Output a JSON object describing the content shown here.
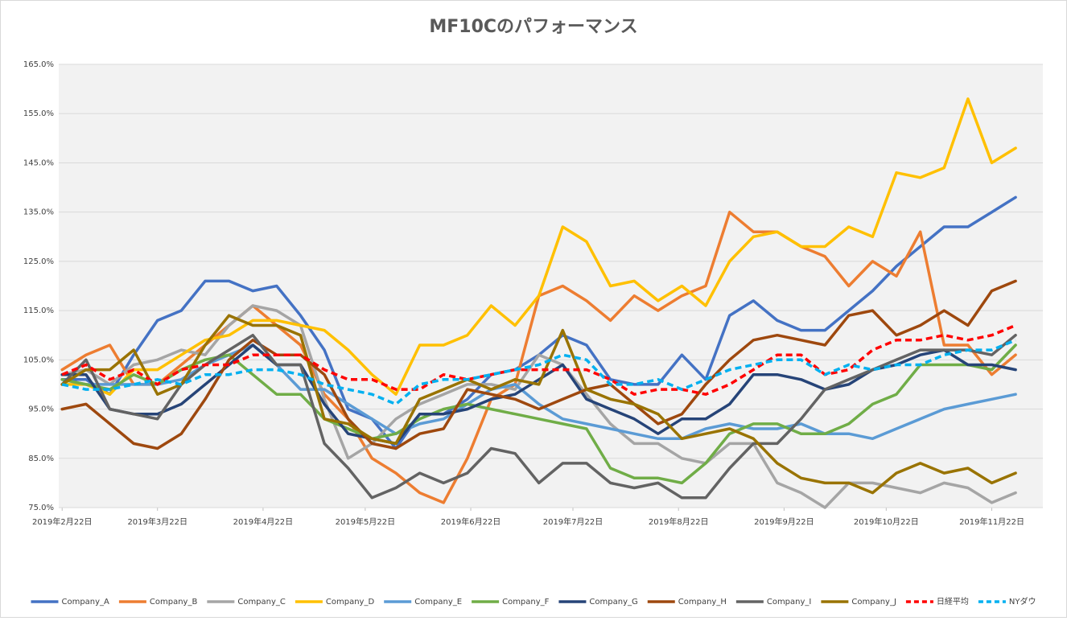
{
  "chart_data": {
    "type": "line",
    "title": "MF10Cのパフォーマンス",
    "x": [
      "2019-02-22",
      "2019-03-01",
      "2019-03-08",
      "2019-03-15",
      "2019-03-22",
      "2019-03-29",
      "2019-04-05",
      "2019-04-12",
      "2019-04-19",
      "2019-04-26",
      "2019-05-03",
      "2019-05-10",
      "2019-05-17",
      "2019-05-24",
      "2019-05-31",
      "2019-06-07",
      "2019-06-14",
      "2019-06-21",
      "2019-06-28",
      "2019-07-05",
      "2019-07-12",
      "2019-07-19",
      "2019-07-26",
      "2019-08-02",
      "2019-08-09",
      "2019-08-16",
      "2019-08-23",
      "2019-08-30",
      "2019-09-06",
      "2019-09-13",
      "2019-09-20",
      "2019-09-27",
      "2019-10-04",
      "2019-10-11",
      "2019-10-18",
      "2019-10-25",
      "2019-11-01",
      "2019-11-08",
      "2019-11-15",
      "2019-11-22",
      "2019-11-29"
    ],
    "xlim": [
      "2019-02-21",
      "2019-12-07"
    ],
    "xticks": [
      {
        "value": "2019-02-22",
        "label": "2019年2月22日"
      },
      {
        "value": "2019-03-22",
        "label": "2019年3月22日"
      },
      {
        "value": "2019-04-22",
        "label": "2019年4月22日"
      },
      {
        "value": "2019-05-22",
        "label": "2019年5月22日"
      },
      {
        "value": "2019-06-22",
        "label": "2019年6月22日"
      },
      {
        "value": "2019-07-22",
        "label": "2019年7月22日"
      },
      {
        "value": "2019-08-22",
        "label": "2019年8月22日"
      },
      {
        "value": "2019-09-22",
        "label": "2019年9月22日"
      },
      {
        "value": "2019-10-22",
        "label": "2019年10月22日"
      },
      {
        "value": "2019-11-22",
        "label": "2019年11月22日"
      }
    ],
    "ylim": [
      75,
      165
    ],
    "yticks": [
      {
        "value": 75,
        "label": "75.0%"
      },
      {
        "value": 85,
        "label": "85.0%"
      },
      {
        "value": 95,
        "label": "95.0%"
      },
      {
        "value": 105,
        "label": "105.0%"
      },
      {
        "value": 115,
        "label": "115.0%"
      },
      {
        "value": 125,
        "label": "125.0%"
      },
      {
        "value": 135,
        "label": "135.0%"
      },
      {
        "value": 145,
        "label": "145.0%"
      },
      {
        "value": 155,
        "label": "155.0%"
      },
      {
        "value": 165,
        "label": "165.0%"
      }
    ],
    "grid": true,
    "legend": "bottom",
    "series": [
      {
        "name": "Company_A",
        "color": "#4472c4",
        "values": [
          101,
          101,
          98,
          106,
          113,
          115,
          121,
          121,
          119,
          120,
          114,
          107,
          95,
          93,
          87,
          94,
          94,
          97,
          102,
          103,
          106,
          110,
          108,
          101,
          100,
          100,
          106,
          101,
          114,
          117,
          113,
          111,
          111,
          115,
          119,
          124,
          128,
          132,
          132,
          135,
          138
        ]
      },
      {
        "name": "Company_B",
        "color": "#ed7d31",
        "values": [
          103,
          106,
          108,
          100,
          100,
          104,
          108,
          112,
          116,
          112,
          108,
          98,
          93,
          85,
          82,
          78,
          76,
          85,
          97,
          100,
          118,
          120,
          117,
          113,
          118,
          115,
          118,
          120,
          135,
          131,
          131,
          128,
          126,
          120,
          125,
          122,
          131,
          108,
          108,
          102,
          106
        ]
      },
      {
        "name": "Company_C",
        "color": "#a5a5a5",
        "values": [
          102,
          103,
          100,
          104,
          105,
          107,
          106,
          112,
          116,
          115,
          112,
          97,
          85,
          88,
          93,
          96,
          98,
          100,
          100,
          99,
          106,
          104,
          98,
          92,
          88,
          88,
          85,
          84,
          88,
          88,
          80,
          78,
          75,
          80,
          80,
          79,
          78,
          80,
          79,
          76,
          78
        ]
      },
      {
        "name": "Company_D",
        "color": "#ffc000",
        "values": [
          100,
          100,
          98,
          103,
          103,
          106,
          109,
          110,
          113,
          113,
          112,
          111,
          107,
          102,
          98,
          108,
          108,
          110,
          116,
          112,
          118,
          132,
          129,
          120,
          121,
          117,
          120,
          116,
          125,
          130,
          131,
          128,
          128,
          132,
          130,
          143,
          142,
          144,
          158,
          145,
          148
        ]
      },
      {
        "name": "Company_E",
        "color": "#5b9bd5",
        "values": [
          101,
          100,
          100,
          100,
          100,
          101,
          104,
          106,
          108,
          104,
          99,
          99,
          96,
          93,
          90,
          92,
          93,
          96,
          99,
          100,
          96,
          93,
          92,
          91,
          90,
          89,
          89,
          91,
          92,
          91,
          91,
          92,
          90,
          90,
          89,
          91,
          93,
          95,
          96,
          97,
          98
        ]
      },
      {
        "name": "Company_F",
        "color": "#70ad47",
        "values": [
          101,
          100,
          99,
          102,
          100,
          103,
          105,
          106,
          102,
          98,
          98,
          93,
          91,
          89,
          90,
          93,
          95,
          96,
          95,
          94,
          93,
          92,
          91,
          83,
          81,
          81,
          80,
          84,
          90,
          92,
          92,
          90,
          90,
          92,
          96,
          98,
          104,
          104,
          104,
          103,
          108
        ]
      },
      {
        "name": "Company_G",
        "color": "#264478",
        "values": [
          102,
          102,
          95,
          94,
          94,
          96,
          100,
          104,
          108,
          104,
          104,
          96,
          90,
          89,
          88,
          94,
          94,
          95,
          97,
          98,
          101,
          104,
          97,
          95,
          93,
          90,
          93,
          93,
          96,
          102,
          102,
          101,
          99,
          100,
          103,
          104,
          106,
          107,
          104,
          104,
          103
        ]
      },
      {
        "name": "Company_H",
        "color": "#9e480e",
        "values": [
          95,
          96,
          92,
          88,
          87,
          90,
          97,
          105,
          109,
          106,
          106,
          102,
          93,
          88,
          87,
          90,
          91,
          99,
          98,
          97,
          95,
          97,
          99,
          100,
          96,
          92,
          94,
          100,
          105,
          109,
          110,
          109,
          108,
          114,
          115,
          110,
          112,
          115,
          112,
          119,
          121
        ]
      },
      {
        "name": "Company_I",
        "color": "#636363",
        "values": [
          100,
          105,
          95,
          94,
          93,
          100,
          104,
          107,
          110,
          104,
          104,
          88,
          83,
          77,
          79,
          82,
          80,
          82,
          87,
          86,
          80,
          84,
          84,
          80,
          79,
          80,
          77,
          77,
          83,
          88,
          88,
          93,
          99,
          101,
          103,
          105,
          107,
          107,
          107,
          106,
          110
        ]
      },
      {
        "name": "Company_J",
        "color": "#997300",
        "values": [
          100,
          103,
          103,
          107,
          98,
          100,
          108,
          114,
          112,
          112,
          110,
          93,
          92,
          89,
          88,
          97,
          99,
          101,
          99,
          101,
          100,
          111,
          99,
          97,
          96,
          94,
          89,
          90,
          91,
          89,
          84,
          81,
          80,
          80,
          78,
          82,
          84,
          82,
          83,
          80,
          82
        ]
      },
      {
        "name": "日経平均",
        "color": "#ff0000",
        "line_style": "dashed",
        "values": [
          102,
          104,
          101,
          103,
          100,
          103,
          104,
          104,
          106,
          106,
          106,
          103,
          101,
          101,
          99,
          99,
          102,
          101,
          102,
          103,
          103,
          103,
          103,
          101,
          98,
          99,
          99,
          98,
          100,
          103,
          106,
          106,
          102,
          103,
          107,
          109,
          109,
          110,
          109,
          110,
          112
        ]
      },
      {
        "name": "NYダウ",
        "color": "#00b0f0",
        "line_style": "dashed",
        "values": [
          100,
          99,
          99,
          100,
          101,
          100,
          102,
          102,
          103,
          103,
          102,
          100,
          99,
          98,
          96,
          100,
          101,
          101,
          102,
          103,
          104,
          106,
          105,
          100,
          100,
          101,
          99,
          101,
          103,
          104,
          105,
          105,
          102,
          104,
          103,
          104,
          104,
          106,
          107,
          107,
          109
        ]
      }
    ]
  }
}
